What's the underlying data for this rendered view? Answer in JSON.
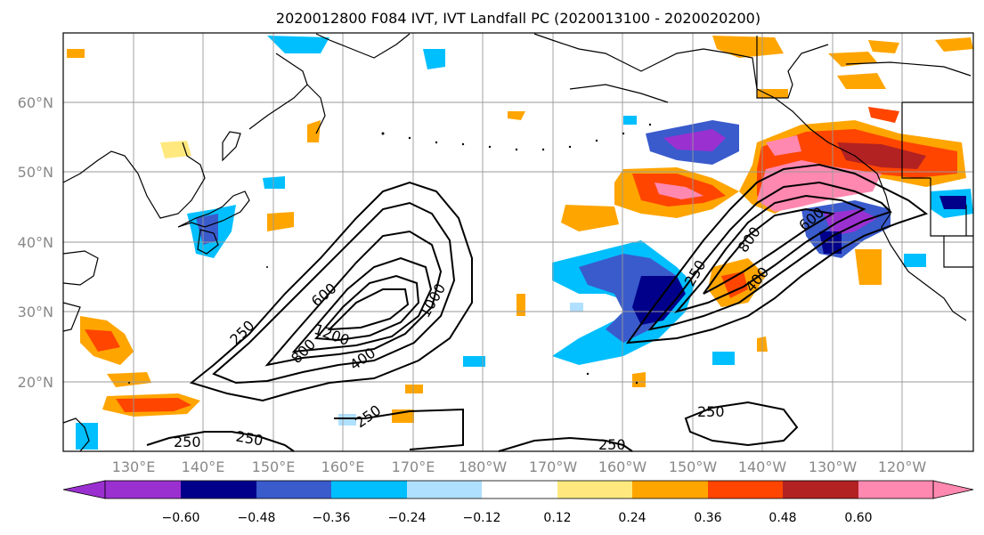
{
  "title": "2020012800 F084 IVT, IVT Landfall PC (2020013100 - 2020020200)",
  "lat_labels": [
    "20°N",
    "30°N",
    "40°N",
    "50°N",
    "60°N"
  ],
  "lon_labels": [
    "130°E",
    "140°E",
    "150°E",
    "160°E",
    "170°E",
    "180°W",
    "170°W",
    "160°W",
    "150°W",
    "140°W",
    "130°W",
    "120°W"
  ],
  "contour_labels": [
    "250",
    "250",
    "250",
    "600",
    "800",
    "1200",
    "400",
    "1000",
    "250",
    "250",
    "250",
    "800",
    "600",
    "400"
  ],
  "colorbar": {
    "ticks": [
      "−0.60",
      "−0.48",
      "−0.36",
      "−0.24",
      "−0.12",
      "0.12",
      "0.24",
      "0.36",
      "0.48",
      "0.60"
    ],
    "colors": [
      "#9b30d0",
      "#00008b",
      "#3a5bcc",
      "#00bfff",
      "#b0e0ff",
      "#ffffff",
      "#ffe97f",
      "#ffa500",
      "#ff4500",
      "#b22222",
      "#ff88b0"
    ]
  }
}
